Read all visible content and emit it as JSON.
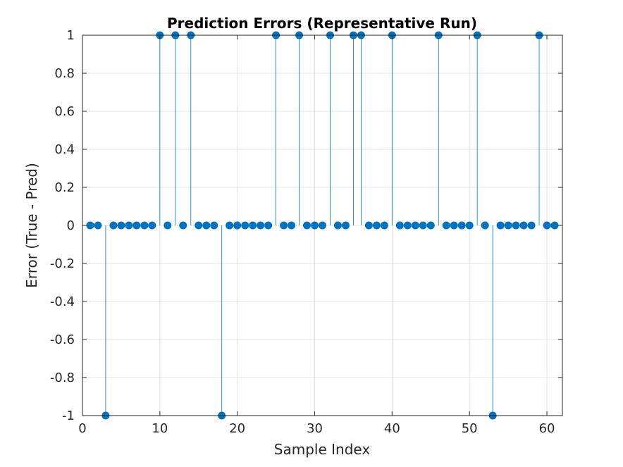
{
  "chart_data": {
    "type": "stem",
    "title": "Prediction Errors (Representative Run)",
    "xlabel": "Sample Index",
    "ylabel": "Error (True - Pred)",
    "xlim": [
      0,
      62
    ],
    "ylim": [
      -1,
      1
    ],
    "grid": true,
    "x_ticks": [
      0,
      10,
      20,
      30,
      40,
      50,
      60
    ],
    "y_ticks": [
      -1,
      -0.8,
      -0.6,
      -0.4,
      -0.2,
      0,
      0.2,
      0.4,
      0.6,
      0.8,
      1
    ],
    "x_tick_labels": [
      "0",
      "10",
      "20",
      "30",
      "40",
      "50",
      "60"
    ],
    "y_tick_labels": [
      "-1",
      "-0.8",
      "-0.6",
      "-0.4",
      "-0.2",
      "0",
      "0.2",
      "0.4",
      "0.6",
      "0.8",
      "1"
    ],
    "series": [
      {
        "color": "#0072BD",
        "x": [
          1,
          2,
          3,
          4,
          5,
          6,
          7,
          8,
          9,
          10,
          11,
          12,
          13,
          14,
          15,
          16,
          17,
          18,
          19,
          20,
          21,
          22,
          23,
          24,
          25,
          26,
          27,
          28,
          29,
          30,
          31,
          32,
          33,
          34,
          35,
          36,
          37,
          38,
          39,
          40,
          41,
          42,
          43,
          44,
          45,
          46,
          47,
          48,
          49,
          50,
          51,
          52,
          53,
          54,
          55,
          56,
          57,
          58,
          59,
          60,
          61
        ],
        "y": [
          0,
          0,
          -1,
          0,
          0,
          0,
          0,
          0,
          0,
          1,
          0,
          1,
          0,
          1,
          0,
          0,
          0,
          -1,
          0,
          0,
          0,
          0,
          0,
          0,
          1,
          0,
          0,
          1,
          0,
          0,
          0,
          1,
          0,
          0,
          1,
          1,
          0,
          0,
          0,
          1,
          0,
          0,
          0,
          0,
          0,
          1,
          0,
          0,
          0,
          0,
          1,
          0,
          -1,
          0,
          0,
          0,
          0,
          0,
          1,
          0,
          0
        ]
      }
    ]
  }
}
